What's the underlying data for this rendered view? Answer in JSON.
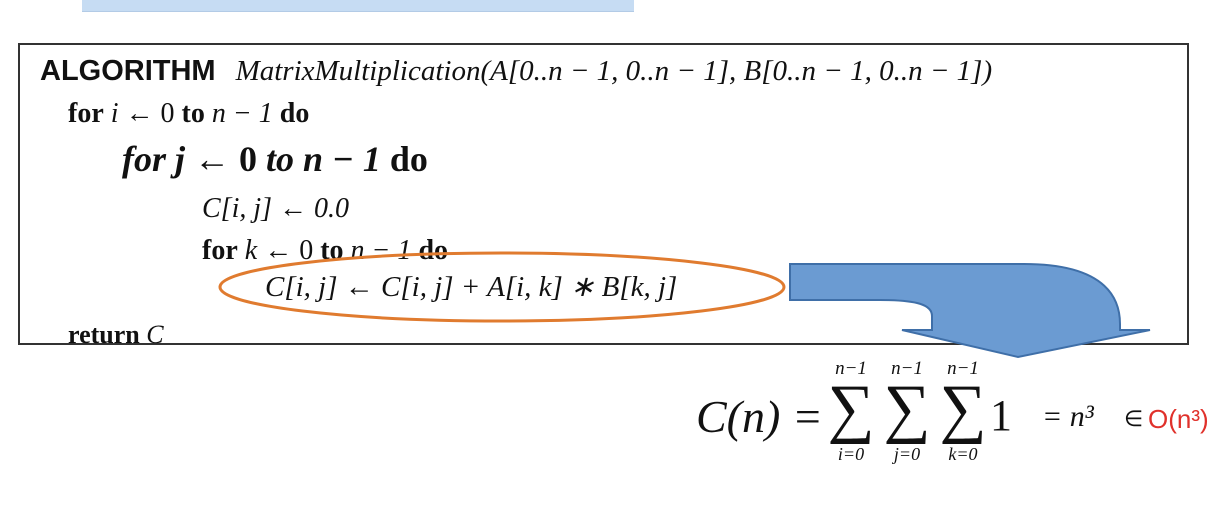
{
  "algorithm": {
    "keyword": "ALGORITHM",
    "signature": "MatrixMultiplication(A[0..n − 1, 0..n − 1], B[0..n − 1, 0..n − 1])",
    "line_for_i": {
      "kw_for": "for",
      "var": "i",
      "arrow_range": " ← 0 ",
      "kw_to": "to",
      "end": " n − 1 ",
      "kw_do": "do"
    },
    "line_for_j": {
      "kw_for": "for",
      "var": "j",
      "arrow_range": " ← 0 ",
      "kw_to": "to",
      "end": " n − 1 ",
      "kw_do": "do"
    },
    "line_init": "C[i, j] ← 0.0",
    "line_for_k": {
      "kw_for": "for",
      "var": "k",
      "arrow_range": " ← 0 ",
      "kw_to": "to",
      "end": " n − 1 ",
      "kw_do": "do"
    },
    "line_update": "C[i, j] ← C[i, j] + A[i, k] ∗ B[k, j]",
    "line_return": {
      "kw_return": "return",
      "value": "C"
    }
  },
  "formula": {
    "lhs": "C(n) =",
    "sum_upper": "n−1",
    "sum_i": "i=0",
    "sum_j": "j=0",
    "sum_k": "k=0",
    "summand": "1",
    "result": "= n³",
    "element_of": "∈",
    "complexity": "O(n³)"
  },
  "colors": {
    "ellipse": "#e07b2f",
    "arrow": "#6b9bd2",
    "complexity": "#e0312b",
    "banner": "#c6dcf3"
  }
}
